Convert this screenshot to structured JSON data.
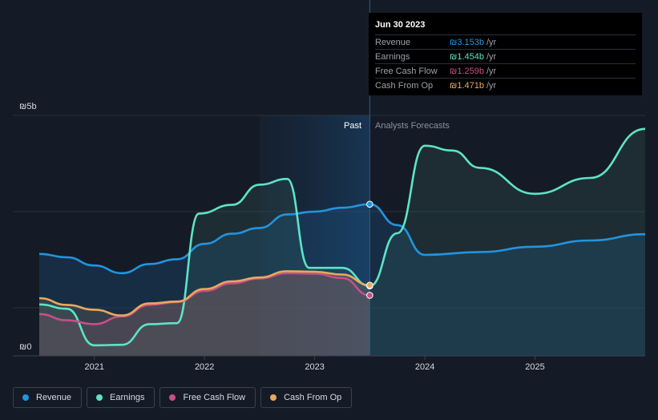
{
  "chart_data": {
    "type": "area",
    "x_ticks": [
      "2021",
      "2022",
      "2023",
      "2024",
      "2025"
    ],
    "y_ticks": [
      "₪5b",
      "₪0"
    ],
    "ylim": [
      0,
      5
    ],
    "unit": "₪b",
    "grid": true,
    "past_label": "Past",
    "forecast_label": "Analysts Forecasts",
    "divider_date": 2023.5,
    "series": [
      {
        "name": "Revenue",
        "color": "#2394df",
        "x": [
          2020.5,
          2020.75,
          2021.0,
          2021.25,
          2021.5,
          2021.75,
          2022.0,
          2022.25,
          2022.5,
          2022.75,
          2023.0,
          2023.25,
          2023.5,
          2023.75,
          2024.0,
          2024.5,
          2025.0,
          2025.5,
          2026.0
        ],
        "y": [
          2.12,
          2.05,
          1.88,
          1.72,
          1.91,
          2.01,
          2.33,
          2.54,
          2.66,
          2.94,
          3.0,
          3.08,
          3.153,
          2.72,
          2.1,
          2.16,
          2.27,
          2.4,
          2.53
        ]
      },
      {
        "name": "Earnings",
        "color": "#5de4c7",
        "x": [
          2020.5,
          2020.75,
          2021.0,
          2021.25,
          2021.5,
          2021.75,
          2021.95,
          2022.25,
          2022.5,
          2022.75,
          2022.95,
          2023.25,
          2023.5,
          2023.75,
          2024.0,
          2024.25,
          2024.5,
          2025.0,
          2025.5,
          2026.0
        ],
        "y": [
          1.07,
          0.98,
          0.22,
          0.23,
          0.66,
          0.68,
          2.96,
          3.14,
          3.56,
          3.68,
          1.83,
          1.83,
          1.454,
          2.55,
          4.37,
          4.27,
          3.91,
          3.37,
          3.7,
          4.72
        ]
      },
      {
        "name": "Free Cash Flow",
        "color": "#c84f86",
        "x": [
          2020.5,
          2020.75,
          2021.0,
          2021.25,
          2021.5,
          2021.75,
          2022.0,
          2022.25,
          2022.5,
          2022.75,
          2023.0,
          2023.25,
          2023.5
        ],
        "y": [
          0.87,
          0.74,
          0.66,
          0.82,
          1.06,
          1.12,
          1.35,
          1.51,
          1.61,
          1.72,
          1.71,
          1.62,
          1.259
        ]
      },
      {
        "name": "Cash From Op",
        "color": "#e8a95d",
        "x": [
          2020.5,
          2020.75,
          2021.0,
          2021.25,
          2021.5,
          2021.75,
          2022.0,
          2022.25,
          2022.5,
          2022.75,
          2023.0,
          2023.25,
          2023.5
        ],
        "y": [
          1.2,
          1.06,
          0.96,
          0.84,
          1.09,
          1.13,
          1.39,
          1.55,
          1.63,
          1.76,
          1.75,
          1.69,
          1.471
        ]
      }
    ]
  },
  "tooltip": {
    "date": "Jun 30 2023",
    "unit": "/yr",
    "rows": [
      {
        "name": "Revenue",
        "value": "₪3.153b",
        "color": "#2394df"
      },
      {
        "name": "Earnings",
        "value": "₪1.454b",
        "color": "#5de4c7"
      },
      {
        "name": "Free Cash Flow",
        "value": "₪1.259b",
        "color": "#c84f86"
      },
      {
        "name": "Cash From Op",
        "value": "₪1.471b",
        "color": "#e8a95d"
      }
    ]
  },
  "legend": [
    {
      "label": "Revenue",
      "color": "#2394df"
    },
    {
      "label": "Earnings",
      "color": "#5de4c7"
    },
    {
      "label": "Free Cash Flow",
      "color": "#c84f86"
    },
    {
      "label": "Cash From Op",
      "color": "#e8a95d"
    }
  ]
}
